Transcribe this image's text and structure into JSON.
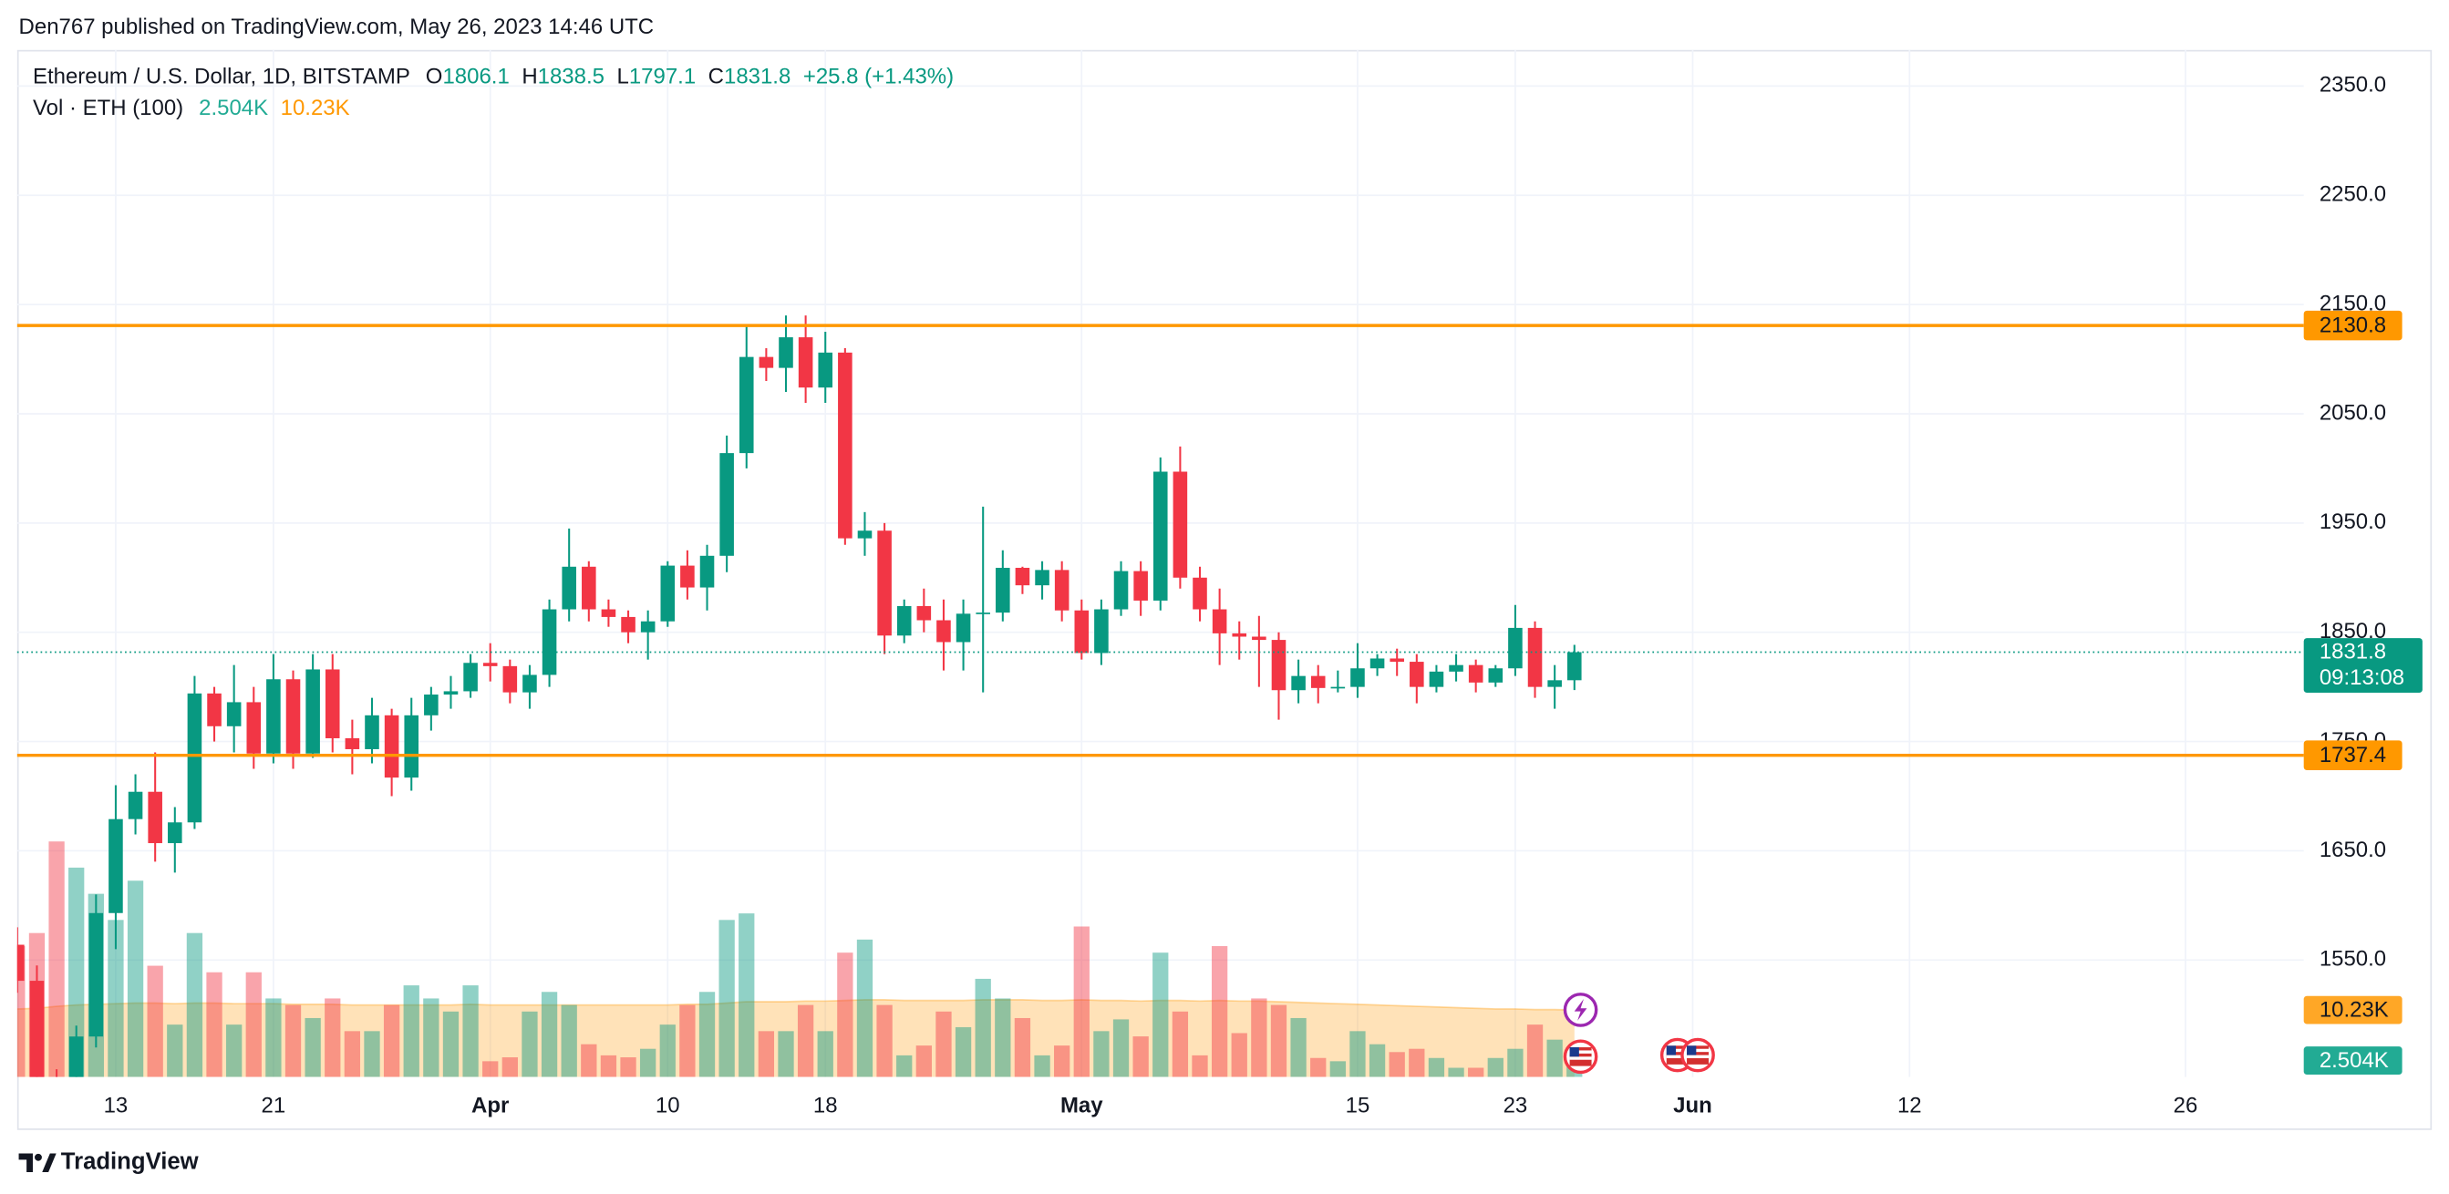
{
  "header": {
    "published": "Den767 published on TradingView.com, May 26, 2023 14:46 UTC"
  },
  "footer": {
    "brand": "TradingView"
  },
  "chart_data": {
    "type": "candlestick",
    "title": "Ethereum / U.S. Dollar, 1D, BITSTAMP",
    "legend": [
      {
        "label": "O",
        "value": 1806.1
      },
      {
        "label": "H",
        "value": 1838.5
      },
      {
        "label": "L",
        "value": 1797.1
      },
      {
        "label": "C",
        "value": 1831.8
      }
    ],
    "change": "+25.8 (+1.43%)",
    "volume_title": "Vol · ETH (100)",
    "volume_last": {
      "value": 2.504,
      "label": "2.504K"
    },
    "volume_ma_last": {
      "value": 10.23,
      "label": "10.23K"
    },
    "up_color": "#089981",
    "down_color": "#f23645",
    "level_color": "#ff9800",
    "ma_color": "#ff9800",
    "x": [
      "2023-03-08",
      "2023-03-09",
      "2023-03-10",
      "2023-03-11",
      "2023-03-12",
      "2023-03-13",
      "2023-03-14",
      "2023-03-15",
      "2023-03-16",
      "2023-03-17",
      "2023-03-18",
      "2023-03-19",
      "2023-03-20",
      "2023-03-21",
      "2023-03-22",
      "2023-03-23",
      "2023-03-24",
      "2023-03-25",
      "2023-03-26",
      "2023-03-27",
      "2023-03-28",
      "2023-03-29",
      "2023-03-30",
      "2023-03-31",
      "2023-04-01",
      "2023-04-02",
      "2023-04-03",
      "2023-04-04",
      "2023-04-05",
      "2023-04-06",
      "2023-04-07",
      "2023-04-08",
      "2023-04-09",
      "2023-04-10",
      "2023-04-11",
      "2023-04-12",
      "2023-04-13",
      "2023-04-14",
      "2023-04-15",
      "2023-04-16",
      "2023-04-17",
      "2023-04-18",
      "2023-04-19",
      "2023-04-20",
      "2023-04-21",
      "2023-04-22",
      "2023-04-23",
      "2023-04-24",
      "2023-04-25",
      "2023-04-26",
      "2023-04-27",
      "2023-04-28",
      "2023-04-29",
      "2023-04-30",
      "2023-05-01",
      "2023-05-02",
      "2023-05-03",
      "2023-05-04",
      "2023-05-05",
      "2023-05-06",
      "2023-05-07",
      "2023-05-08",
      "2023-05-09",
      "2023-05-10",
      "2023-05-11",
      "2023-05-12",
      "2023-05-13",
      "2023-05-14",
      "2023-05-15",
      "2023-05-16",
      "2023-05-17",
      "2023-05-18",
      "2023-05-19",
      "2023-05-20",
      "2023-05-21",
      "2023-05-22",
      "2023-05-23",
      "2023-05-24",
      "2023-05-25",
      "2023-05-26"
    ],
    "open": [
      1564,
      1531,
      1438,
      1430,
      1480,
      1593,
      1679,
      1704,
      1657,
      1676,
      1794,
      1764,
      1786,
      1739,
      1807,
      1739,
      1816,
      1753,
      1743,
      1774,
      1717,
      1774,
      1793,
      1796,
      1822,
      1819,
      1795,
      1811,
      1871,
      1910,
      1871,
      1864,
      1850,
      1860,
      1911,
      1891,
      1920,
      2014,
      2102,
      2092,
      2120,
      2074,
      2106,
      1936,
      1943,
      1847,
      1874,
      1861,
      1841,
      1867,
      1868,
      1909,
      1893,
      1907,
      1870,
      1831,
      1871,
      1906,
      1879,
      1997,
      1900,
      1871,
      1849,
      1846,
      1843,
      1797,
      1810,
      1799,
      1800,
      1817,
      1826,
      1823,
      1800,
      1814,
      1820,
      1804,
      1817,
      1854,
      1800,
      1806.1
    ],
    "high": [
      1580,
      1545,
      1450,
      1490,
      1610,
      1710,
      1720,
      1740,
      1690,
      1810,
      1800,
      1820,
      1800,
      1830,
      1815,
      1830,
      1830,
      1770,
      1790,
      1780,
      1790,
      1800,
      1810,
      1830,
      1840,
      1825,
      1820,
      1880,
      1945,
      1915,
      1880,
      1870,
      1870,
      1915,
      1925,
      1930,
      2030,
      2130,
      2110,
      2140,
      2140,
      2125,
      2110,
      1960,
      1950,
      1880,
      1890,
      1880,
      1880,
      1965,
      1925,
      1910,
      1915,
      1915,
      1880,
      1880,
      1915,
      1915,
      2010,
      2020,
      1910,
      1890,
      1860,
      1865,
      1850,
      1825,
      1820,
      1815,
      1840,
      1830,
      1835,
      1830,
      1820,
      1830,
      1825,
      1820,
      1875,
      1860,
      1820,
      1838.5
    ],
    "low": [
      1520,
      1425,
      1370,
      1415,
      1470,
      1560,
      1665,
      1640,
      1630,
      1670,
      1750,
      1740,
      1725,
      1730,
      1725,
      1735,
      1740,
      1720,
      1730,
      1700,
      1705,
      1760,
      1780,
      1790,
      1805,
      1785,
      1780,
      1800,
      1860,
      1860,
      1855,
      1840,
      1825,
      1855,
      1880,
      1870,
      1905,
      2000,
      2080,
      2070,
      2060,
      2060,
      1930,
      1920,
      1830,
      1840,
      1850,
      1815,
      1815,
      1795,
      1860,
      1885,
      1880,
      1860,
      1825,
      1820,
      1865,
      1865,
      1870,
      1890,
      1860,
      1820,
      1825,
      1800,
      1770,
      1785,
      1785,
      1795,
      1790,
      1810,
      1810,
      1785,
      1795,
      1805,
      1795,
      1800,
      1810,
      1790,
      1780,
      1797.1
    ],
    "close": [
      1531,
      1438,
      1430,
      1480,
      1593,
      1679,
      1704,
      1657,
      1676,
      1794,
      1764,
      1786,
      1739,
      1807,
      1739,
      1816,
      1753,
      1743,
      1774,
      1717,
      1774,
      1793,
      1796,
      1822,
      1819,
      1795,
      1811,
      1871,
      1910,
      1871,
      1864,
      1850,
      1860,
      1911,
      1891,
      1920,
      2014,
      2102,
      2092,
      2120,
      2074,
      2106,
      1936,
      1943,
      1847,
      1874,
      1861,
      1841,
      1867,
      1868,
      1909,
      1893,
      1907,
      1870,
      1831,
      1871,
      1906,
      1879,
      1997,
      1900,
      1871,
      1849,
      1846,
      1843,
      1797,
      1810,
      1799,
      1800,
      1817,
      1826,
      1823,
      1800,
      1814,
      1820,
      1804,
      1817,
      1854,
      1800,
      1806.1,
      1831.8
    ],
    "volume": [
      20,
      22,
      36,
      32,
      28,
      24,
      30,
      17,
      8,
      22,
      16,
      8,
      16,
      12,
      11,
      9,
      12,
      7,
      7,
      11,
      14,
      12,
      10,
      14,
      2.4,
      3,
      10,
      13,
      11,
      5,
      3.3,
      3,
      4.3,
      8,
      11,
      13,
      24,
      25,
      7,
      7,
      11,
      7,
      19,
      21,
      11,
      3.3,
      4.8,
      10,
      7.6,
      15,
      12,
      9,
      3.3,
      4.8,
      23,
      7,
      8.8,
      6.2,
      19,
      10,
      3.3,
      20,
      6.7,
      12,
      11,
      9,
      2.9,
      2.4,
      7,
      5,
      3.8,
      4.3,
      2.9,
      1.4,
      1.4,
      2.9,
      4.3,
      8,
      5.7,
      2.504
    ],
    "volume_ma": [
      10.4,
      10.5,
      10.8,
      11.0,
      11.1,
      11.2,
      11.3,
      11.3,
      11.2,
      11.3,
      11.3,
      11.2,
      11.2,
      11.2,
      11.1,
      11.1,
      11.1,
      11.0,
      11.0,
      11.0,
      11.0,
      11.0,
      11.0,
      11.1,
      11.0,
      11.0,
      11.0,
      11.0,
      11.0,
      11.0,
      11.0,
      11.0,
      11.0,
      11.0,
      11.1,
      11.1,
      11.3,
      11.5,
      11.5,
      11.5,
      11.6,
      11.6,
      11.7,
      11.8,
      11.8,
      11.7,
      11.7,
      11.7,
      11.7,
      11.8,
      11.8,
      11.8,
      11.7,
      11.7,
      11.8,
      11.7,
      11.7,
      11.6,
      11.7,
      11.7,
      11.6,
      11.7,
      11.6,
      11.6,
      11.5,
      11.4,
      11.3,
      11.2,
      11.1,
      11.0,
      10.9,
      10.8,
      10.7,
      10.6,
      10.5,
      10.4,
      10.4,
      10.3,
      10.3,
      10.23
    ],
    "xlim": [
      "2023-03-08",
      "2023-07-02"
    ],
    "xticks": [
      {
        "value": "2023-03-13",
        "label": "13"
      },
      {
        "value": "2023-03-21",
        "label": "21"
      },
      {
        "value": "2023-04-01",
        "label": "Apr"
      },
      {
        "value": "2023-04-10",
        "label": "10"
      },
      {
        "value": "2023-04-18",
        "label": "18"
      },
      {
        "value": "2023-05-01",
        "label": "May"
      },
      {
        "value": "2023-05-15",
        "label": "15"
      },
      {
        "value": "2023-05-23",
        "label": "23"
      },
      {
        "value": "2023-06-01",
        "label": "Jun"
      },
      {
        "value": "2023-06-12",
        "label": "12"
      },
      {
        "value": "2023-06-26",
        "label": "26"
      }
    ],
    "ylim": [
      1443,
      2383
    ],
    "yticks": [
      {
        "value": 2350,
        "label": "2350.0"
      },
      {
        "value": 2250,
        "label": "2250.0"
      },
      {
        "value": 2150,
        "label": "2150.0"
      },
      {
        "value": 2050,
        "label": "2050.0"
      },
      {
        "value": 1950,
        "label": "1950.0"
      },
      {
        "value": 1850,
        "label": "1850.0"
      },
      {
        "value": 1750,
        "label": "1750.0"
      },
      {
        "value": 1650,
        "label": "1650.0"
      },
      {
        "value": 1550,
        "label": "1550.0"
      }
    ],
    "volume_lim": [
      0,
      157
    ],
    "levels": [
      2130.8,
      1737.4
    ],
    "last_price": 1831.8,
    "countdown": "09:13:08",
    "grid": true
  }
}
